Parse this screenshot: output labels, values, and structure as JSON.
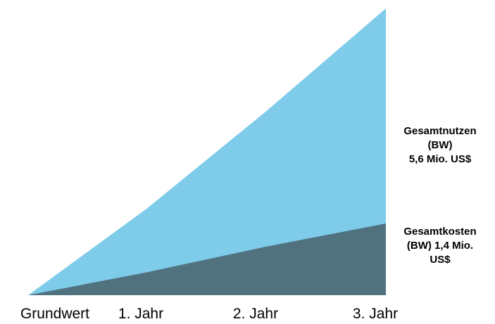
{
  "chart_data": {
    "type": "area",
    "categories": [
      "Grundwert",
      "1. Jahr",
      "2. Jahr",
      "3. Jahr"
    ],
    "series": [
      {
        "values": [
          0,
          1.7,
          3.6,
          5.6
        ],
        "color": "#7fcbea"
      },
      {
        "values": [
          0,
          0.45,
          0.95,
          1.4
        ],
        "color": "#50727f"
      }
    ],
    "ylim": [
      0,
      5.6
    ],
    "grid": false,
    "legend": "none",
    "annotations": [
      {
        "series": 0,
        "lines": [
          "Gesamtnutzen",
          "(BW)",
          "5,6 Mio. US$"
        ]
      },
      {
        "series": 1,
        "lines": [
          "Gesamtkosten",
          "(BW) 1,4 Mio.",
          "US$"
        ]
      }
    ]
  }
}
